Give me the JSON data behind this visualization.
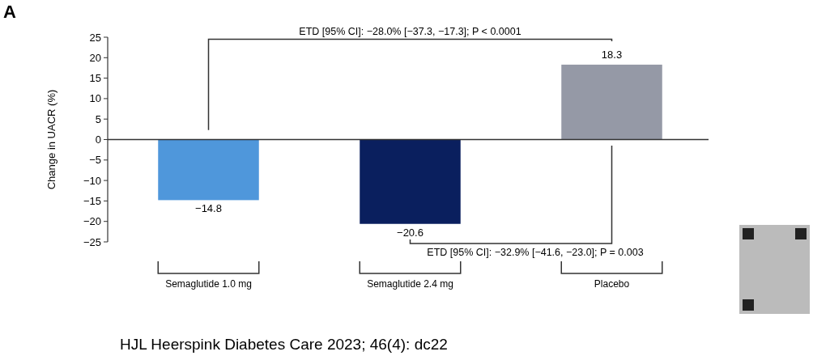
{
  "chart_data": {
    "type": "bar",
    "categories": [
      "Semaglutide 1.0 mg",
      "Semaglutide 2.4 mg",
      "Placebo"
    ],
    "values": [
      -14.8,
      -20.6,
      18.3
    ],
    "colors": [
      "#4f97db",
      "#0a1f5e",
      "#9599a6"
    ],
    "ylabel": "Change in UACR (%)",
    "ylim": [
      -25,
      25
    ],
    "yticks": [
      {
        "value": 25,
        "label": "25"
      },
      {
        "value": 20,
        "label": "20"
      },
      {
        "value": 15,
        "label": "15"
      },
      {
        "value": 10,
        "label": "10"
      },
      {
        "value": 5,
        "label": "5"
      },
      {
        "value": 0,
        "label": "0"
      },
      {
        "value": -5,
        "label": "−5"
      },
      {
        "value": -10,
        "label": "−10"
      },
      {
        "value": -15,
        "label": "−15"
      },
      {
        "value": -20,
        "label": "−20"
      },
      {
        "value": -25,
        "label": "−25"
      }
    ],
    "value_labels": [
      "−14.8",
      "−20.6",
      "18.3"
    ],
    "annotations": [
      "A",
      "ETD [95% CI]: −28.0% [−37.3, −17.3]; P < 0.0001",
      "ETD [95% CI]: −32.9% [−41.6, −23.0]; P = 0.003",
      "HJL Heerspink Diabetes Care 2023; 46(4): dc22"
    ]
  }
}
